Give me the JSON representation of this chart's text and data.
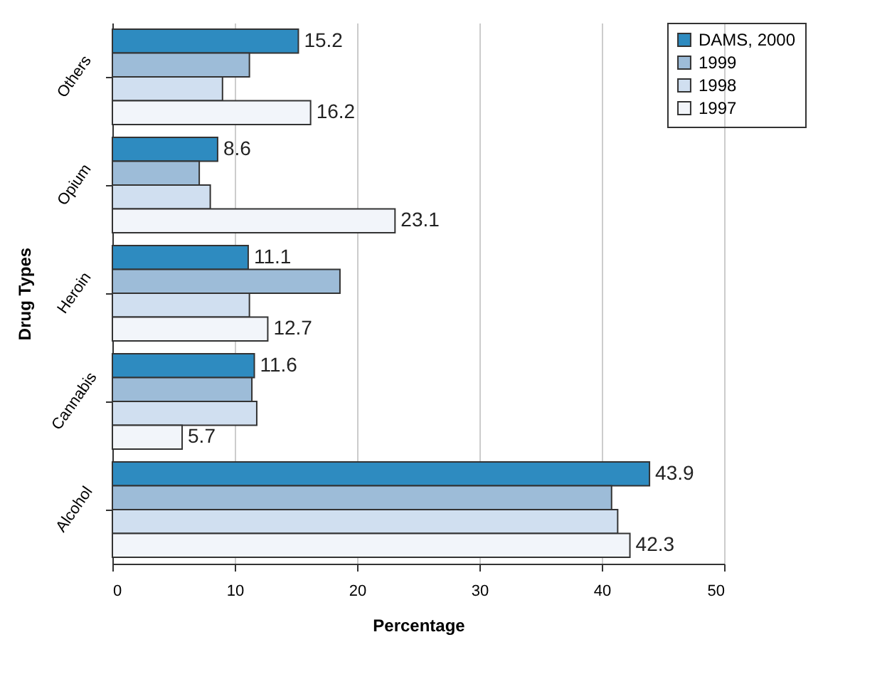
{
  "chart_data": {
    "type": "bar",
    "orientation": "horizontal",
    "xlabel": "Percentage",
    "ylabel": "Drug Types",
    "categories": [
      "Others",
      "Opium",
      "Heroin",
      "Cannabis",
      "Alcohol"
    ],
    "series": [
      {
        "name": "DAMS, 2000",
        "color": "#2e8bc0",
        "values": [
          15.2,
          8.6,
          11.1,
          11.6,
          43.9
        ],
        "value_labels": [
          "15.2",
          "8.6",
          "11.1",
          "11.6",
          "43.9"
        ]
      },
      {
        "name": "1999",
        "color": "#9dbcd8",
        "values": [
          11.2,
          7.1,
          18.6,
          11.4,
          40.8
        ]
      },
      {
        "name": "1998",
        "color": "#d0dff0",
        "values": [
          9.0,
          8.0,
          11.2,
          11.8,
          41.3
        ]
      },
      {
        "name": "1997",
        "color": "#f2f5fa",
        "values": [
          16.2,
          23.1,
          12.7,
          5.7,
          42.3
        ],
        "value_labels": [
          "16.2",
          "23.1",
          "12.7",
          "5.7",
          "42.3"
        ]
      }
    ],
    "xlim": [
      0,
      50
    ],
    "xticks": [
      0,
      10,
      20,
      30,
      40,
      50
    ],
    "grid": "x",
    "legend": "right"
  }
}
